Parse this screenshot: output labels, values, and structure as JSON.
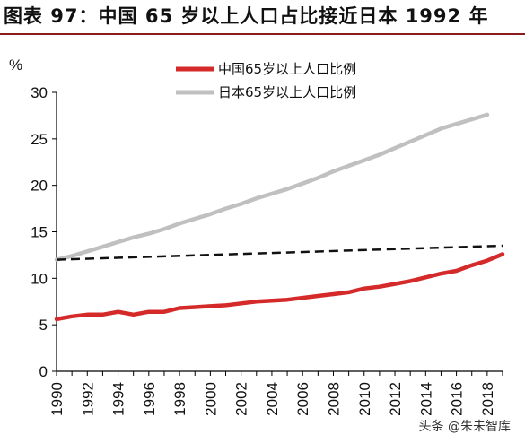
{
  "figure": {
    "title": "图表 97：中国 65 岁以上人口占比接近日本 1992 年",
    "watermark": "头条 @朱未智库"
  },
  "chart_data": {
    "type": "line",
    "title": "",
    "xlabel": "",
    "ylabel": "%",
    "xlim": [
      1990,
      2019
    ],
    "ylim": [
      0,
      30
    ],
    "x_ticks": [
      1990,
      1992,
      1994,
      1996,
      1998,
      2000,
      2002,
      2004,
      2006,
      2008,
      2010,
      2012,
      2014,
      2016,
      2018
    ],
    "y_ticks": [
      0,
      5,
      10,
      15,
      20,
      25,
      30
    ],
    "legend_position": "top-center",
    "grid": false,
    "series": [
      {
        "name": "中国65岁以上人口比例",
        "color": "#d42a2a",
        "style": "solid",
        "x": [
          1990,
          1991,
          1992,
          1993,
          1994,
          1995,
          1996,
          1997,
          1998,
          1999,
          2000,
          2001,
          2002,
          2003,
          2004,
          2005,
          2006,
          2007,
          2008,
          2009,
          2010,
          2011,
          2012,
          2013,
          2014,
          2015,
          2016,
          2017,
          2018,
          2019
        ],
        "values": [
          5.6,
          5.9,
          6.1,
          6.1,
          6.4,
          6.1,
          6.4,
          6.4,
          6.8,
          6.9,
          7.0,
          7.1,
          7.3,
          7.5,
          7.6,
          7.7,
          7.9,
          8.1,
          8.3,
          8.5,
          8.9,
          9.1,
          9.4,
          9.7,
          10.1,
          10.5,
          10.8,
          11.4,
          11.9,
          12.6
        ]
      },
      {
        "name": "日本65岁以上人口比例",
        "color": "#c0c0c0",
        "style": "solid",
        "x": [
          1990,
          1991,
          1992,
          1993,
          1994,
          1995,
          1996,
          1997,
          1998,
          1999,
          2000,
          2001,
          2002,
          2003,
          2004,
          2005,
          2006,
          2007,
          2008,
          2009,
          2010,
          2011,
          2012,
          2013,
          2014,
          2015,
          2016,
          2017,
          2018
        ],
        "values": [
          12.0,
          12.4,
          12.9,
          13.4,
          13.9,
          14.4,
          14.8,
          15.3,
          15.9,
          16.4,
          16.9,
          17.5,
          18.0,
          18.6,
          19.1,
          19.6,
          20.2,
          20.8,
          21.5,
          22.1,
          22.7,
          23.3,
          24.0,
          24.7,
          25.4,
          26.1,
          26.6,
          27.1,
          27.6
        ]
      },
      {
        "name": "",
        "color": "#111111",
        "style": "dashed",
        "x": [
          1990,
          2019
        ],
        "values": [
          12.0,
          13.5
        ]
      }
    ]
  }
}
